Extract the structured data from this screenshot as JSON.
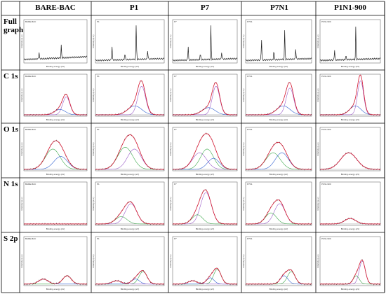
{
  "table": {
    "headers": [
      "BARE-BAC",
      "P1",
      "P7",
      "P7N1",
      "P1N1-900"
    ],
    "rows": [
      "Full graph",
      "C 1s",
      "O 1s",
      "N 1s",
      "S 2p"
    ]
  },
  "axes": {
    "xlabel": "Binding energy (eV)",
    "ylabel": "Intensity (a.u.)"
  },
  "panel_tags": {
    "Full graph": [
      "BARE-BAC",
      "P1",
      "P7",
      "P7N1",
      "P1N1-900"
    ],
    "C 1s": [
      "BARE-BAC",
      "P1",
      "P7",
      "P7N1",
      "P1N1-900"
    ],
    "O 1s": [
      "BARE-BAC",
      "P1",
      "P7",
      "P7N1",
      "P1N1-900"
    ],
    "N 1s": [
      "BARE-BAC",
      "P1",
      "P7",
      "P7N1",
      "P1N1-900"
    ],
    "S 2p": [
      "BARE-BAC",
      "P1",
      "P7",
      "P7N1",
      "P1N1-900"
    ]
  },
  "colors": {
    "envelope": "#e0203a",
    "comp1": "#3aa84a",
    "comp2": "#2f5fd0",
    "comp3": "#9a5cc8",
    "data": "#222222",
    "grid_line": "#000000"
  },
  "chart_data": [
    {
      "type": "line",
      "row": "Full graph",
      "x_range": [
        0,
        700
      ],
      "x_reversed": true,
      "series": [
        {
          "sample": "BARE-BAC",
          "peaks_eV": [
            285,
            532
          ],
          "heights": [
            0.35,
            0.2
          ],
          "baseline": 0.15
        },
        {
          "sample": "P1",
          "peaks_eV": [
            168,
            285,
            400,
            532
          ],
          "heights": [
            0.25,
            1.0,
            0.2,
            0.4
          ],
          "baseline": 0.1
        },
        {
          "sample": "P7",
          "peaks_eV": [
            168,
            285,
            400,
            532
          ],
          "heights": [
            0.2,
            0.95,
            0.2,
            0.4
          ],
          "baseline": 0.1
        },
        {
          "sample": "P7N1",
          "peaks_eV": [
            168,
            285,
            400,
            532
          ],
          "heights": [
            0.3,
            0.8,
            0.3,
            0.6
          ],
          "baseline": 0.1
        },
        {
          "sample": "P1N1-900",
          "peaks_eV": [
            285,
            400,
            532
          ],
          "heights": [
            0.9,
            0.15,
            0.3
          ],
          "baseline": 0.1
        }
      ]
    },
    {
      "type": "line",
      "row": "C 1s",
      "x_range": [
        280,
        294
      ],
      "x_reversed": true,
      "series": [
        {
          "sample": "BARE-BAC",
          "components": [
            {
              "center": 284.6,
              "height": 0.5,
              "width": 0.8,
              "color": "comp3"
            },
            {
              "center": 286.0,
              "height": 0.15,
              "width": 1.2,
              "color": "comp2"
            }
          ]
        },
        {
          "sample": "P1",
          "components": [
            {
              "center": 284.6,
              "height": 0.8,
              "width": 0.8,
              "color": "comp3"
            },
            {
              "center": 286.0,
              "height": 0.25,
              "width": 1.4,
              "color": "comp2"
            }
          ]
        },
        {
          "sample": "P7",
          "components": [
            {
              "center": 284.6,
              "height": 0.8,
              "width": 0.8,
              "color": "comp3"
            },
            {
              "center": 286.2,
              "height": 0.2,
              "width": 1.4,
              "color": "comp2"
            }
          ]
        },
        {
          "sample": "P7N1",
          "components": [
            {
              "center": 284.6,
              "height": 0.75,
              "width": 0.8,
              "color": "comp3"
            },
            {
              "center": 286.0,
              "height": 0.25,
              "width": 1.4,
              "color": "comp2"
            }
          ]
        },
        {
          "sample": "P1N1-900",
          "components": [
            {
              "center": 284.6,
              "height": 0.95,
              "width": 0.7,
              "color": "comp3"
            },
            {
              "center": 285.8,
              "height": 0.25,
              "width": 1.3,
              "color": "comp2"
            }
          ]
        }
      ]
    },
    {
      "type": "line",
      "row": "O 1s",
      "x_range": [
        526,
        538
      ],
      "x_reversed": true,
      "series": [
        {
          "sample": "BARE-BAC",
          "components": [
            {
              "center": 532.5,
              "height": 0.55,
              "width": 1.4,
              "color": "comp1"
            },
            {
              "center": 531.0,
              "height": 0.35,
              "width": 1.3,
              "color": "comp2"
            }
          ]
        },
        {
          "sample": "P1",
          "components": [
            {
              "center": 532.8,
              "height": 0.6,
              "width": 1.3,
              "color": "comp1"
            },
            {
              "center": 531.2,
              "height": 0.55,
              "width": 1.2,
              "color": "comp3"
            }
          ]
        },
        {
          "sample": "P7",
          "components": [
            {
              "center": 533.0,
              "height": 0.45,
              "width": 1.3,
              "color": "comp3"
            },
            {
              "center": 531.6,
              "height": 0.55,
              "width": 1.2,
              "color": "comp1"
            },
            {
              "center": 530.4,
              "height": 0.3,
              "width": 1.1,
              "color": "comp2"
            }
          ]
        },
        {
          "sample": "P7N1",
          "components": [
            {
              "center": 533.0,
              "height": 0.45,
              "width": 1.3,
              "color": "comp1"
            },
            {
              "center": 531.4,
              "height": 0.45,
              "width": 1.2,
              "color": "comp2"
            }
          ]
        },
        {
          "sample": "P1N1-900",
          "components": [
            {
              "center": 532.3,
              "height": 0.45,
              "width": 1.6,
              "color": "comp3"
            }
          ]
        }
      ]
    },
    {
      "type": "line",
      "row": "N 1s",
      "x_range": [
        394,
        406
      ],
      "x_reversed": true,
      "series": [
        {
          "sample": "BARE-BAC",
          "components": []
        },
        {
          "sample": "P1",
          "components": [
            {
              "center": 399.8,
              "height": 0.55,
              "width": 1.0,
              "color": "comp3"
            },
            {
              "center": 401.5,
              "height": 0.2,
              "width": 1.0,
              "color": "comp1"
            }
          ]
        },
        {
          "sample": "P7",
          "components": [
            {
              "center": 399.8,
              "height": 0.85,
              "width": 1.0,
              "color": "comp3"
            },
            {
              "center": 401.4,
              "height": 0.25,
              "width": 1.0,
              "color": "comp1"
            }
          ]
        },
        {
          "sample": "P7N1",
          "components": [
            {
              "center": 399.8,
              "height": 0.55,
              "width": 1.0,
              "color": "comp3"
            },
            {
              "center": 401.4,
              "height": 0.3,
              "width": 1.0,
              "color": "comp1"
            }
          ]
        },
        {
          "sample": "P1N1-900",
          "components": [
            {
              "center": 400.0,
              "height": 0.15,
              "width": 1.1,
              "color": "comp3"
            }
          ]
        }
      ]
    },
    {
      "type": "line",
      "row": "S 2p",
      "x_range": [
        160,
        172
      ],
      "x_reversed": true,
      "series": [
        {
          "sample": "BARE-BAC",
          "components": [
            {
              "center": 163.8,
              "height": 0.2,
              "width": 0.8,
              "color": "comp1"
            },
            {
              "center": 168.3,
              "height": 0.12,
              "width": 0.9,
              "color": "comp2"
            }
          ]
        },
        {
          "sample": "P1",
          "components": [
            {
              "center": 163.7,
              "height": 0.3,
              "width": 0.7,
              "color": "comp1"
            },
            {
              "center": 165.0,
              "height": 0.12,
              "width": 0.7,
              "color": "comp2"
            },
            {
              "center": 168.3,
              "height": 0.08,
              "width": 0.8,
              "color": "comp3"
            }
          ]
        },
        {
          "sample": "P7",
          "components": [
            {
              "center": 163.7,
              "height": 0.35,
              "width": 0.7,
              "color": "comp1"
            },
            {
              "center": 165.0,
              "height": 0.15,
              "width": 0.7,
              "color": "comp2"
            },
            {
              "center": 168.3,
              "height": 0.08,
              "width": 0.8,
              "color": "comp3"
            }
          ]
        },
        {
          "sample": "P7N1",
          "components": [
            {
              "center": 163.7,
              "height": 0.3,
              "width": 0.7,
              "color": "comp1"
            },
            {
              "center": 165.0,
              "height": 0.2,
              "width": 0.7,
              "color": "comp2"
            }
          ]
        },
        {
          "sample": "P1N1-900",
          "components": [
            {
              "center": 163.6,
              "height": 0.55,
              "width": 0.6,
              "color": "comp3"
            },
            {
              "center": 164.8,
              "height": 0.2,
              "width": 0.6,
              "color": "comp1"
            }
          ]
        }
      ]
    }
  ]
}
